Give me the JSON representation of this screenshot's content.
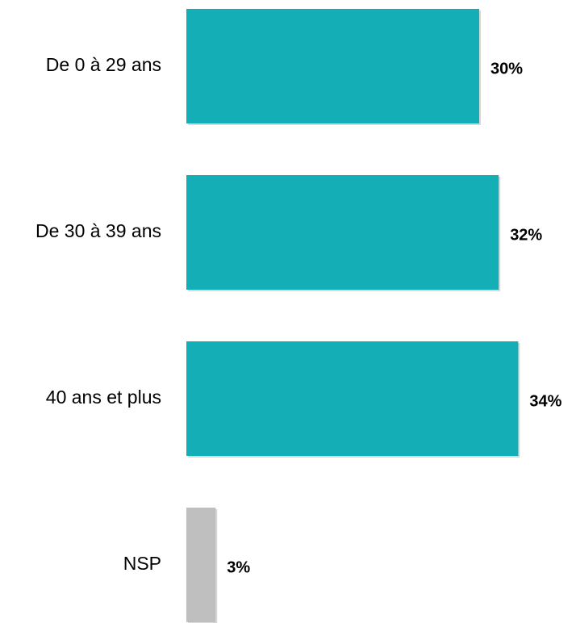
{
  "chart_data": {
    "type": "bar",
    "orientation": "horizontal",
    "categories": [
      "De 0 à 29 ans",
      "De 30 à 39 ans",
      "40 ans et plus",
      "NSP"
    ],
    "values": [
      30,
      32,
      34,
      3
    ],
    "value_labels": [
      "30%",
      "32%",
      "34%",
      "3%"
    ],
    "unit": "%",
    "xlim": [
      0,
      34
    ],
    "title": "",
    "xlabel": "",
    "ylabel": "",
    "grid": false,
    "legend": "none",
    "colors": {
      "main": "#14AFB6",
      "nsp": "#BFBFBF",
      "shadow": "#C9C9C9"
    }
  }
}
